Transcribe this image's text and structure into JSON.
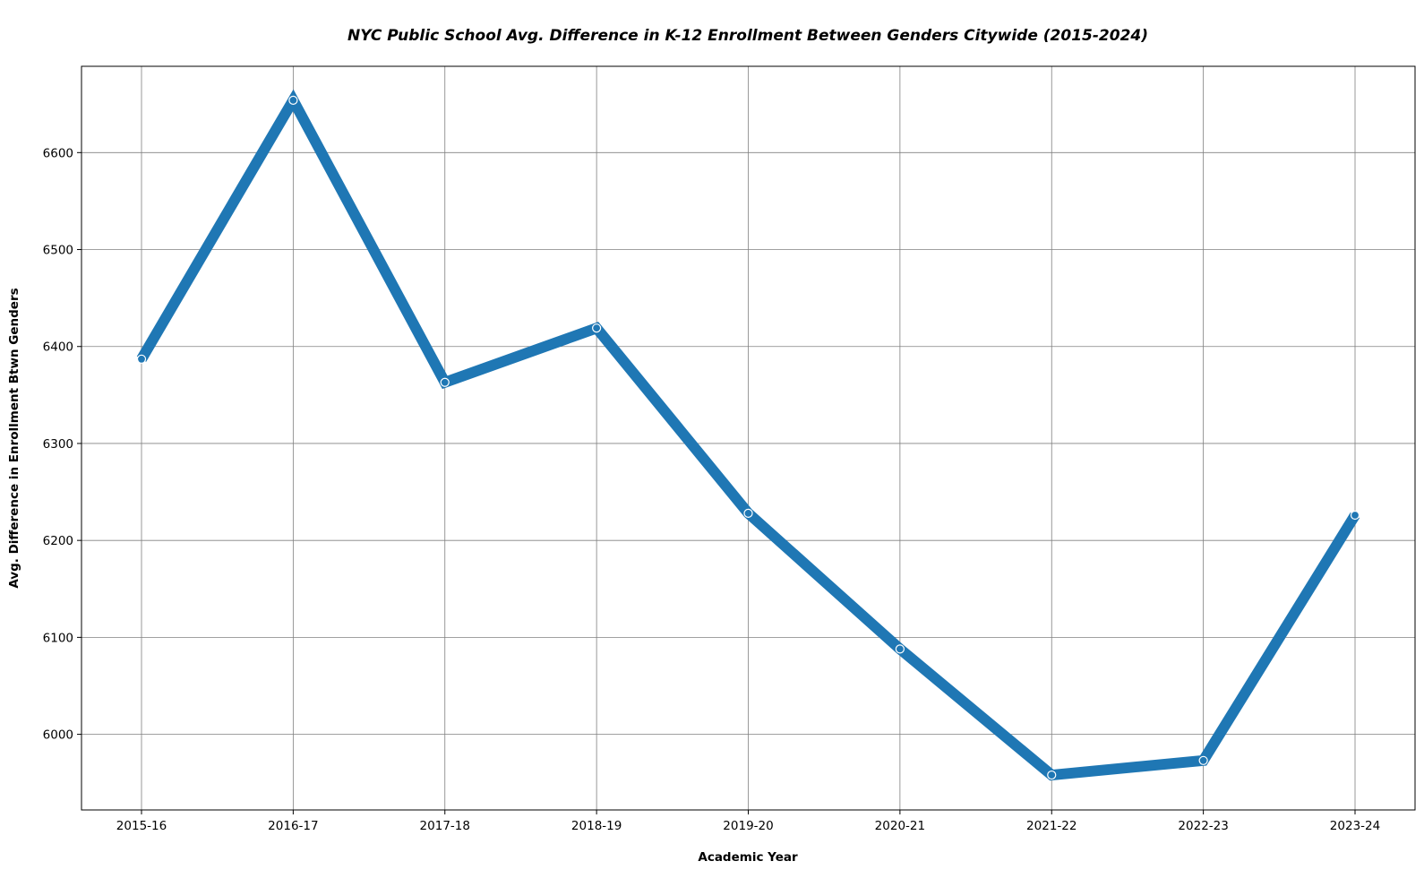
{
  "chart_data": {
    "type": "line",
    "title": "NYC Public School Avg. Difference in K-12 Enrollment Between Genders Citywide (2015-2024)",
    "xlabel": "Academic Year",
    "ylabel": "Avg. Difference in Enrollment Btwn Genders",
    "categories": [
      "2015-16",
      "2016-17",
      "2017-18",
      "2018-19",
      "2019-20",
      "2020-21",
      "2021-22",
      "2022-23",
      "2023-24"
    ],
    "series": [
      {
        "values": [
          6387,
          6654,
          6363,
          6419,
          6228,
          6088,
          5958,
          5973,
          6226
        ],
        "color": "#1f77b4"
      }
    ],
    "ylim": [
      5922,
      6689
    ],
    "yticks": [
      6000,
      6100,
      6200,
      6300,
      6400,
      6500,
      6600
    ],
    "grid": true,
    "marker": "circle"
  }
}
